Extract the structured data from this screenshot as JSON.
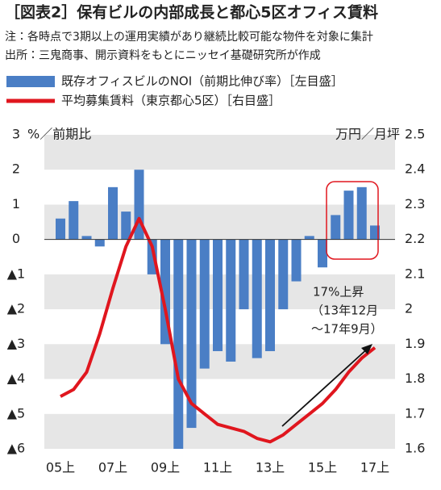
{
  "chart_data": {
    "type": "combo",
    "title": "［図表2］保有ビルの内部成長と都心5区オフィス賃料",
    "notes": [
      "注：各時点で3期以上の運用実績があり継続比較可能な物件を対象に集計",
      "出所：三鬼商事、開示資料をもとにニッセイ基礎研究所が作成"
    ],
    "y_label": "%／前期比",
    "y2_label": "万円／月坪",
    "categories": [
      "05上",
      null,
      null,
      null,
      "07上",
      null,
      null,
      null,
      "09上",
      null,
      null,
      null,
      "11上",
      null,
      null,
      null,
      "13上",
      null,
      null,
      null,
      "15上",
      null,
      null,
      null,
      "17上"
    ],
    "series": [
      {
        "name": "既存オフィスビルのNOI（前期比伸び率）［左目盛］",
        "type": "bar",
        "axis": "y",
        "color": "#4a7ec5",
        "values": [
          0.6,
          1.1,
          0.1,
          -0.2,
          1.5,
          0.8,
          2.0,
          -1.0,
          -3.0,
          -6.0,
          -5.4,
          -3.7,
          -3.2,
          -3.5,
          -2.0,
          -3.4,
          -3.2,
          -2.0,
          -1.2,
          0.1,
          -0.8,
          0.7,
          1.4,
          1.5,
          0.4
        ]
      },
      {
        "name": "平均募集賃料（東京都心5区）［右目盛］",
        "type": "line",
        "axis": "y2",
        "color": "#e0161e",
        "values": [
          1.75,
          1.77,
          1.82,
          1.93,
          2.06,
          2.18,
          2.26,
          2.18,
          2.0,
          1.8,
          1.73,
          1.7,
          1.67,
          1.66,
          1.65,
          1.63,
          1.62,
          1.64,
          1.67,
          1.7,
          1.73,
          1.77,
          1.82,
          1.86,
          1.89
        ]
      }
    ],
    "ylim": [
      -6,
      3
    ],
    "yticks": [
      {
        "value": -6,
        "label": "▲6"
      },
      {
        "value": -5,
        "label": "▲5"
      },
      {
        "value": -4,
        "label": "▲4"
      },
      {
        "value": -3,
        "label": "▲3"
      },
      {
        "value": -2,
        "label": "▲2"
      },
      {
        "value": -1,
        "label": "▲1"
      },
      0,
      1,
      2,
      3
    ],
    "y2lim": [
      1.6,
      2.5
    ],
    "y2ticks": [
      1.6,
      1.7,
      1.8,
      1.9,
      2.0,
      2.1,
      2.2,
      2.3,
      2.4,
      2.5
    ],
    "annotation": [
      "17%上昇",
      "（13年12月",
      "〜17年9月）"
    ]
  }
}
